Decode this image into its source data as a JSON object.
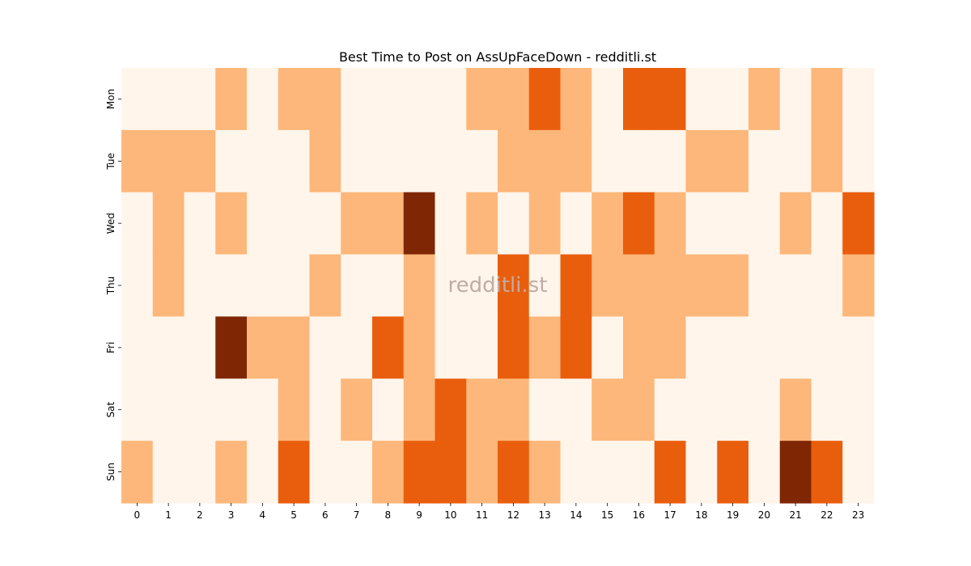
{
  "chart_data": {
    "type": "heatmap",
    "title": "Best Time to Post on AssUpFaceDown - redditli.st",
    "watermark": "redditli.st",
    "xlabel": "",
    "ylabel": "",
    "x_categories": [
      "0",
      "1",
      "2",
      "3",
      "4",
      "5",
      "6",
      "7",
      "8",
      "9",
      "10",
      "11",
      "12",
      "13",
      "14",
      "15",
      "16",
      "17",
      "18",
      "19",
      "20",
      "21",
      "22",
      "23"
    ],
    "y_categories": [
      "Mon",
      "Tue",
      "Wed",
      "Thu",
      "Fri",
      "Sat",
      "Sun"
    ],
    "values": [
      [
        0,
        0,
        0,
        1,
        0,
        1,
        1,
        0,
        0,
        0,
        0,
        1,
        1,
        2,
        1,
        0,
        2,
        2,
        0,
        0,
        1,
        0,
        1,
        0
      ],
      [
        1,
        1,
        1,
        0,
        0,
        0,
        1,
        0,
        0,
        0,
        0,
        0,
        1,
        1,
        1,
        0,
        0,
        0,
        1,
        1,
        0,
        0,
        1,
        0
      ],
      [
        0,
        1,
        0,
        1,
        0,
        0,
        0,
        1,
        1,
        3,
        0,
        1,
        0,
        1,
        0,
        1,
        2,
        1,
        0,
        0,
        0,
        1,
        0,
        2
      ],
      [
        0,
        1,
        0,
        0,
        0,
        0,
        1,
        0,
        0,
        1,
        0,
        0,
        2,
        0,
        2,
        1,
        1,
        1,
        1,
        1,
        0,
        0,
        0,
        1
      ],
      [
        0,
        0,
        0,
        3,
        1,
        1,
        0,
        0,
        2,
        1,
        0,
        0,
        2,
        1,
        2,
        0,
        1,
        1,
        0,
        0,
        0,
        0,
        0,
        0
      ],
      [
        0,
        0,
        0,
        0,
        0,
        1,
        0,
        1,
        0,
        1,
        2,
        1,
        1,
        0,
        0,
        1,
        1,
        0,
        0,
        0,
        0,
        1,
        0,
        0
      ],
      [
        1,
        0,
        0,
        1,
        0,
        2,
        0,
        0,
        1,
        2,
        2,
        1,
        2,
        1,
        0,
        0,
        0,
        2,
        0,
        2,
        0,
        3,
        2,
        0
      ]
    ],
    "colorscale": [
      "#fff5eb",
      "#fdb77a",
      "#e95e0d",
      "#7f2704"
    ],
    "legend": "none",
    "grid": false
  }
}
